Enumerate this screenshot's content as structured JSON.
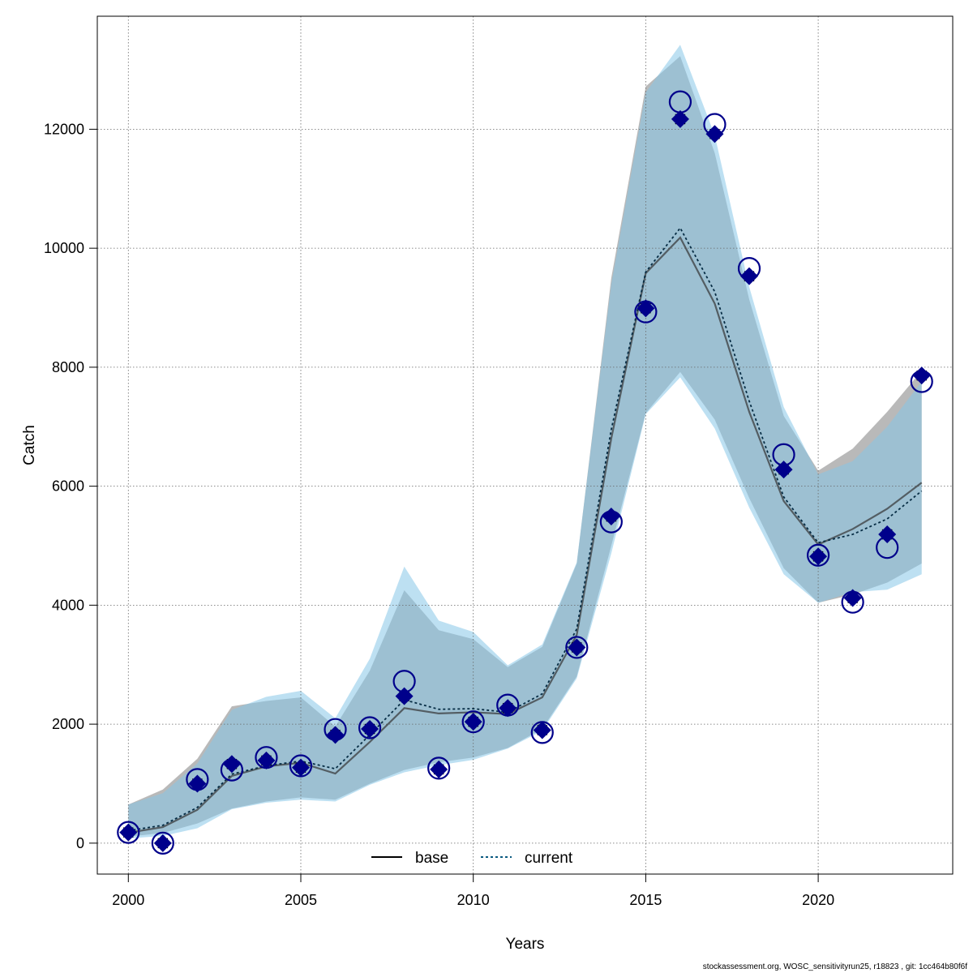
{
  "chart_data": {
    "type": "line",
    "xlabel": "Years",
    "ylabel": "Catch",
    "xlim": [
      1999.1,
      2023.9
    ],
    "ylim": [
      -520,
      13900
    ],
    "xticks": [
      2000,
      2005,
      2010,
      2015,
      2020
    ],
    "yticks": [
      0,
      2000,
      4000,
      6000,
      8000,
      10000,
      12000
    ],
    "xtick_labels": [
      "2000",
      "2005",
      "2010",
      "2015",
      "2020"
    ],
    "ytick_labels": [
      "0",
      "2000",
      "4000",
      "6000",
      "8000",
      "10000",
      "12000"
    ],
    "grid": true,
    "legend_position": "bottom",
    "footer": "stockassessment.org, WOSC_sensitivityrun25, r18823 , git: 1cc464b80f6f",
    "x": [
      2000,
      2001,
      2002,
      2003,
      2004,
      2005,
      2006,
      2007,
      2008,
      2009,
      2010,
      2011,
      2012,
      2013,
      2014,
      2015,
      2016,
      2017,
      2018,
      2019,
      2020,
      2021,
      2022,
      2023
    ],
    "series": [
      {
        "name": "base",
        "color": "#000000",
        "band_color": "#a8a8a8",
        "fit": [
          175,
          270,
          560,
          1130,
          1290,
          1350,
          1170,
          1700,
          2270,
          2180,
          2200,
          2170,
          2450,
          3500,
          6800,
          9580,
          10180,
          9070,
          7250,
          5750,
          5020,
          5280,
          5620,
          6060
        ],
        "lower": [
          110,
          170,
          330,
          580,
          700,
          770,
          730,
          1000,
          1230,
          1360,
          1440,
          1600,
          1920,
          2800,
          5000,
          7230,
          7920,
          7120,
          5800,
          4620,
          4040,
          4180,
          4380,
          4700
        ],
        "upper": [
          650,
          900,
          1420,
          2300,
          2390,
          2450,
          1960,
          2900,
          4250,
          3580,
          3430,
          2960,
          3300,
          4700,
          9500,
          12720,
          13230,
          11600,
          9140,
          7180,
          6260,
          6630,
          7250,
          7940
        ],
        "observed": [
          180,
          0,
          1000,
          1330,
          1390,
          1270,
          1820,
          1920,
          2470,
          1240,
          2040,
          2270,
          1900,
          3290,
          5490,
          8990,
          12170,
          11920,
          9530,
          6280,
          4820,
          4120,
          5190,
          7860
        ]
      },
      {
        "name": "current",
        "color": "#0a5a80",
        "band_color": "#87c6e8",
        "fit": [
          210,
          300,
          600,
          1160,
          1300,
          1380,
          1250,
          1820,
          2410,
          2250,
          2260,
          2200,
          2510,
          3600,
          6950,
          9600,
          10340,
          9270,
          7430,
          5820,
          5050,
          5190,
          5450,
          5920
        ],
        "lower": [
          80,
          120,
          250,
          570,
          680,
          730,
          700,
          980,
          1190,
          1310,
          1400,
          1590,
          1890,
          2770,
          4870,
          7210,
          7830,
          6970,
          5640,
          4520,
          4040,
          4220,
          4260,
          4520
        ],
        "upper": [
          650,
          840,
          1340,
          2240,
          2460,
          2560,
          2100,
          3100,
          4650,
          3740,
          3550,
          2990,
          3340,
          4720,
          9400,
          12620,
          13420,
          11900,
          9350,
          7330,
          6200,
          6420,
          7000,
          7760
        ],
        "observed": [
          180,
          0,
          1070,
          1230,
          1440,
          1300,
          1910,
          1940,
          2720,
          1260,
          2040,
          2320,
          1860,
          3290,
          5400,
          8930,
          12460,
          12080,
          9660,
          6530,
          4840,
          4050,
          4970,
          7760
        ]
      }
    ]
  }
}
